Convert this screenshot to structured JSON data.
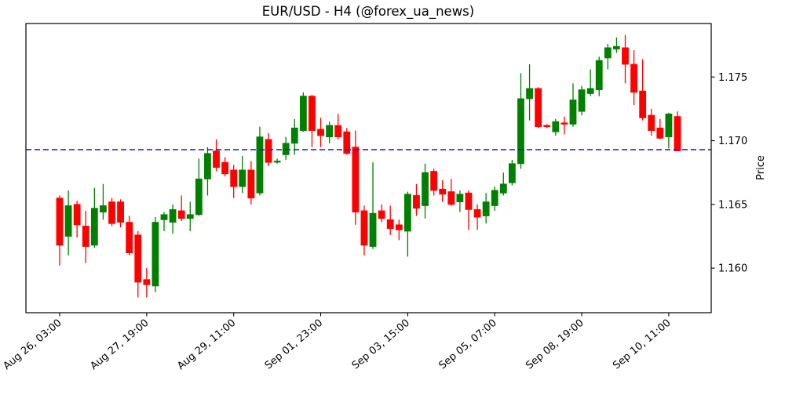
{
  "chart_data": {
    "type": "candlestick",
    "title": "EUR/USD - H4 (@forex_ua_news)",
    "xlabel": "",
    "ylabel": "Price",
    "ylim": [
      1.1565,
      1.1792
    ],
    "grid": false,
    "legend": "none",
    "background_color": "#ffffff",
    "axis_color": "#000000",
    "up_color": "#008000",
    "down_color": "#ff0000",
    "yticks": [
      1.16,
      1.165,
      1.17,
      1.175
    ],
    "ytick_labels": [
      "1.160",
      "1.165",
      "1.170",
      "1.175"
    ],
    "xtick_indices": [
      0,
      10,
      20,
      30,
      40,
      50,
      60,
      70
    ],
    "xtick_labels": [
      "Aug 26, 03:00",
      "Aug 27, 19:00",
      "Aug 29, 11:00",
      "Sep 01, 23:00",
      "Sep 03, 15:00",
      "Sep 05, 07:00",
      "Sep 08, 19:00",
      "Sep 10, 11:00"
    ],
    "hline": {
      "value": 1.1693,
      "color": "#0000ff",
      "style": "dashed"
    },
    "candles_format": [
      "open",
      "high",
      "low",
      "close"
    ],
    "candles": [
      [
        1.1655,
        1.1657,
        1.1602,
        1.1618
      ],
      [
        1.1625,
        1.1661,
        1.161,
        1.1649
      ],
      [
        1.165,
        1.1653,
        1.1624,
        1.1634
      ],
      [
        1.1633,
        1.1645,
        1.1604,
        1.1617
      ],
      [
        1.1618,
        1.1663,
        1.1616,
        1.1647
      ],
      [
        1.1644,
        1.1666,
        1.1638,
        1.1649
      ],
      [
        1.1652,
        1.1655,
        1.1633,
        1.1635
      ],
      [
        1.1652,
        1.1654,
        1.1632,
        1.1636
      ],
      [
        1.1636,
        1.1641,
        1.161,
        1.1612
      ],
      [
        1.1626,
        1.1629,
        1.1577,
        1.1589
      ],
      [
        1.1591,
        1.16,
        1.1577,
        1.1587
      ],
      [
        1.1586,
        1.164,
        1.1581,
        1.1636
      ],
      [
        1.1638,
        1.1644,
        1.1629,
        1.1642
      ],
      [
        1.1636,
        1.165,
        1.1627,
        1.1646
      ],
      [
        1.1645,
        1.1657,
        1.1637,
        1.1639
      ],
      [
        1.1639,
        1.1652,
        1.1629,
        1.1642
      ],
      [
        1.1642,
        1.1686,
        1.1641,
        1.167
      ],
      [
        1.167,
        1.1695,
        1.1657,
        1.169
      ],
      [
        1.1692,
        1.1701,
        1.1676,
        1.1679
      ],
      [
        1.1683,
        1.1687,
        1.1672,
        1.1674
      ],
      [
        1.1677,
        1.1681,
        1.1655,
        1.1664
      ],
      [
        1.1664,
        1.1688,
        1.1659,
        1.1677
      ],
      [
        1.1677,
        1.1684,
        1.165,
        1.1655
      ],
      [
        1.1659,
        1.1711,
        1.1657,
        1.1703
      ],
      [
        1.1701,
        1.1706,
        1.168,
        1.1683
      ],
      [
        1.1684,
        1.1686,
        1.1682,
        1.1684
      ],
      [
        1.1689,
        1.1703,
        1.1685,
        1.1698
      ],
      [
        1.1698,
        1.1717,
        1.1689,
        1.171
      ],
      [
        1.1708,
        1.1738,
        1.1707,
        1.1735
      ],
      [
        1.1735,
        1.1736,
        1.1695,
        1.1708
      ],
      [
        1.1709,
        1.1718,
        1.1695,
        1.1704
      ],
      [
        1.1703,
        1.1715,
        1.1698,
        1.1712
      ],
      [
        1.1712,
        1.1721,
        1.1701,
        1.1703
      ],
      [
        1.1707,
        1.171,
        1.1689,
        1.169
      ],
      [
        1.1695,
        1.1708,
        1.1634,
        1.1644
      ],
      [
        1.1645,
        1.1649,
        1.161,
        1.1618
      ],
      [
        1.1617,
        1.1683,
        1.1615,
        1.1643
      ],
      [
        1.1645,
        1.165,
        1.1636,
        1.1639
      ],
      [
        1.1638,
        1.1649,
        1.1626,
        1.1631
      ],
      [
        1.1634,
        1.1638,
        1.1622,
        1.163
      ],
      [
        1.1629,
        1.166,
        1.1609,
        1.1658
      ],
      [
        1.1657,
        1.1666,
        1.1641,
        1.1647
      ],
      [
        1.1649,
        1.1682,
        1.1639,
        1.1675
      ],
      [
        1.1676,
        1.1678,
        1.1657,
        1.1661
      ],
      [
        1.1662,
        1.1669,
        1.1652,
        1.1658
      ],
      [
        1.166,
        1.167,
        1.1649,
        1.165
      ],
      [
        1.1652,
        1.1661,
        1.1644,
        1.1658
      ],
      [
        1.1659,
        1.1661,
        1.163,
        1.1646
      ],
      [
        1.1646,
        1.165,
        1.163,
        1.164
      ],
      [
        1.1641,
        1.1659,
        1.1635,
        1.1652
      ],
      [
        1.1649,
        1.1664,
        1.1645,
        1.1661
      ],
      [
        1.1659,
        1.1675,
        1.1657,
        1.1666
      ],
      [
        1.1667,
        1.1685,
        1.1665,
        1.1682
      ],
      [
        1.1682,
        1.1753,
        1.1678,
        1.1733
      ],
      [
        1.1733,
        1.176,
        1.1716,
        1.1741
      ],
      [
        1.1741,
        1.1742,
        1.171,
        1.1711
      ],
      [
        1.1712,
        1.1713,
        1.171,
        1.1711
      ],
      [
        1.1707,
        1.1717,
        1.1704,
        1.1715
      ],
      [
        1.1714,
        1.1719,
        1.1705,
        1.1713
      ],
      [
        1.1713,
        1.1745,
        1.1711,
        1.1732
      ],
      [
        1.1723,
        1.1743,
        1.172,
        1.174
      ],
      [
        1.1737,
        1.1756,
        1.1735,
        1.1741
      ],
      [
        1.174,
        1.1766,
        1.1735,
        1.1763
      ],
      [
        1.1765,
        1.1776,
        1.1756,
        1.1773
      ],
      [
        1.1772,
        1.1781,
        1.1769,
        1.1774
      ],
      [
        1.1773,
        1.1783,
        1.1745,
        1.176
      ],
      [
        1.176,
        1.1771,
        1.1728,
        1.1738
      ],
      [
        1.1739,
        1.1764,
        1.1716,
        1.1718
      ],
      [
        1.172,
        1.1725,
        1.1704,
        1.1708
      ],
      [
        1.171,
        1.1717,
        1.1701,
        1.1702
      ],
      [
        1.1703,
        1.1722,
        1.1694,
        1.1721
      ],
      [
        1.1719,
        1.1723,
        1.1692,
        1.1692
      ]
    ]
  }
}
